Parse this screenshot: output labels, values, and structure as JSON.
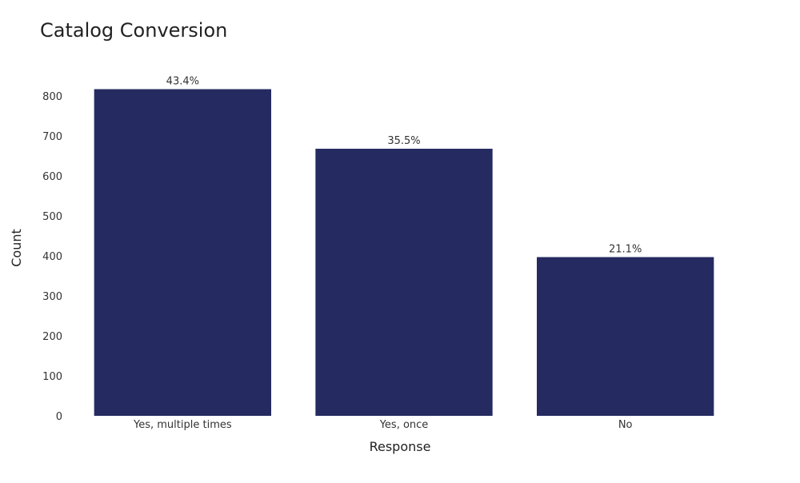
{
  "chart_data": {
    "type": "bar",
    "title": "Catalog Conversion",
    "xlabel": "Response",
    "ylabel": "Count",
    "categories": [
      "Yes, multiple times",
      "Yes, once",
      "No"
    ],
    "values": [
      817,
      668,
      397
    ],
    "data_labels": [
      "43.4%",
      "35.5%",
      "21.1%"
    ],
    "ylim": [
      0,
      880
    ],
    "yticks": [
      0,
      100,
      200,
      300,
      400,
      500,
      600,
      700,
      800
    ],
    "grid": false,
    "legend": "none",
    "bar_color": "#252b61"
  }
}
